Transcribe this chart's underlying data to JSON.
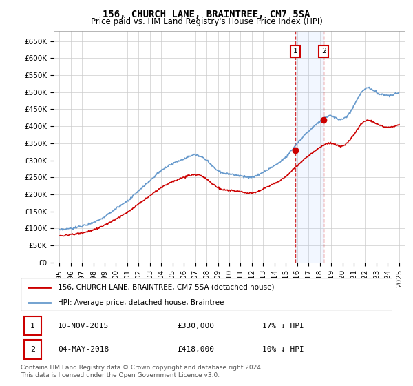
{
  "title": "156, CHURCH LANE, BRAINTREE, CM7 5SA",
  "subtitle": "Price paid vs. HM Land Registry's House Price Index (HPI)",
  "legend_line1": "156, CHURCH LANE, BRAINTREE, CM7 5SA (detached house)",
  "legend_line2": "HPI: Average price, detached house, Braintree",
  "footnote": "Contains HM Land Registry data © Crown copyright and database right 2024.\nThis data is licensed under the Open Government Licence v3.0.",
  "sale1_label": "1",
  "sale1_date": "10-NOV-2015",
  "sale1_price": "£330,000",
  "sale1_note": "17% ↓ HPI",
  "sale2_label": "2",
  "sale2_date": "04-MAY-2018",
  "sale2_price": "£418,000",
  "sale2_note": "10% ↓ HPI",
  "hpi_color": "#6699cc",
  "price_color": "#cc0000",
  "sale1_year": 2015.85,
  "sale1_price_val": 330000,
  "sale2_year": 2018.34,
  "sale2_price_val": 418000,
  "ylim": [
    0,
    680000
  ],
  "xlim_start": 1995,
  "xlim_end": 2025.5,
  "highlight1_x": 2015.85,
  "highlight2_x": 2018.34,
  "ytick_vals": [
    0,
    50000,
    100000,
    150000,
    200000,
    250000,
    300000,
    350000,
    400000,
    450000,
    500000,
    550000,
    600000,
    650000
  ],
  "ytick_labels": [
    "£0",
    "£50K",
    "£100K",
    "£150K",
    "£200K",
    "£250K",
    "£300K",
    "£350K",
    "£400K",
    "£450K",
    "£500K",
    "£550K",
    "£600K",
    "£650K"
  ],
  "xtick_vals": [
    1995,
    1996,
    1997,
    1998,
    1999,
    2000,
    2001,
    2002,
    2003,
    2004,
    2005,
    2006,
    2007,
    2008,
    2009,
    2010,
    2011,
    2012,
    2013,
    2014,
    2015,
    2016,
    2017,
    2018,
    2019,
    2020,
    2021,
    2022,
    2023,
    2024,
    2025
  ]
}
